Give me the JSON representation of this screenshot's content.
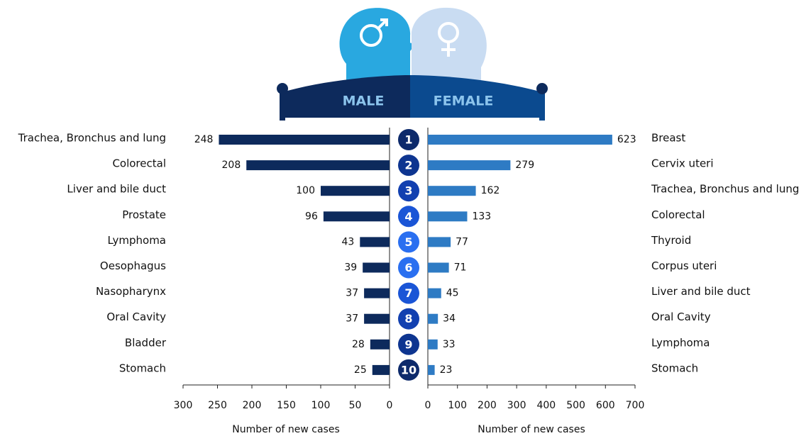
{
  "chart_data": [
    {
      "type": "hbar",
      "title": "MALE",
      "xlabel": "Number of new cases",
      "categories": [
        "Trachea, Bronchus and lung",
        "Colorectal",
        "Liver and bile duct",
        "Prostate",
        "Lymphoma",
        "Oesophagus",
        "Nasopharynx",
        "Oral Cavity",
        "Bladder",
        "Stomach"
      ],
      "values": [
        248,
        208,
        100,
        96,
        43,
        39,
        37,
        37,
        28,
        25
      ],
      "color": "#0d2a5c",
      "xlim": [
        300,
        0
      ],
      "xticks": [
        300,
        250,
        200,
        150,
        100,
        50,
        0
      ]
    },
    {
      "type": "hbar",
      "title": "FEMALE",
      "xlabel": "Number of new cases",
      "categories": [
        "Breast",
        "Cervix uteri",
        "Trachea, Bronchus and lung",
        "Colorectal",
        "Thyroid",
        "Corpus uteri",
        "Liver and bile duct",
        "Oral Cavity",
        "Lymphoma",
        "Stomach"
      ],
      "values": [
        623,
        279,
        162,
        133,
        77,
        71,
        45,
        34,
        33,
        23
      ],
      "color": "#2e7bc4",
      "xlim": [
        0,
        700
      ],
      "xticks": [
        0,
        100,
        200,
        300,
        400,
        500,
        600,
        700
      ]
    }
  ],
  "ranks": [
    1,
    2,
    3,
    4,
    5,
    6,
    7,
    8,
    9,
    10
  ]
}
